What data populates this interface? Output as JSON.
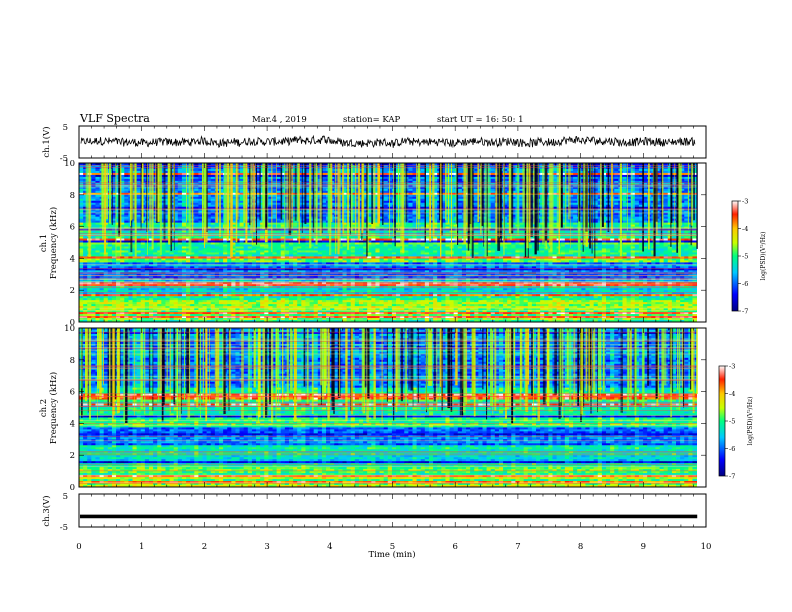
{
  "header": {
    "title": "VLF Spectra",
    "date": "Mar.4 , 2019",
    "station": "station= KAP",
    "start": "start UT = 16: 50: 1"
  },
  "chart_data": [
    {
      "name": "ch1-waveform",
      "type": "line",
      "ylabel": "ch.1(V)",
      "yticks": [
        "5",
        "-5"
      ],
      "ylim": [
        -5,
        5
      ],
      "xlim": [
        0,
        10
      ],
      "description_values": "noisy waveform around ~0 V, range roughly -2.5 to +2 V",
      "color": "#000000"
    },
    {
      "name": "ch1-spectrogram",
      "type": "heatmap",
      "ylabel": "ch.1\nFrequency (kHz)",
      "ylabel_line1": "ch.1",
      "ylabel_line2": "Frequency (kHz)",
      "yticks": [
        "0",
        "2",
        "4",
        "6",
        "8",
        "10"
      ],
      "ylim": [
        0,
        10
      ],
      "xlim": [
        0,
        10
      ],
      "colorbar": {
        "label": "log(PSD)(V²/Hz)",
        "ticks": [
          "-3",
          "-4",
          "-5",
          "-6",
          "-7"
        ],
        "range": [
          -7,
          -3
        ]
      }
    },
    {
      "name": "ch2-spectrogram",
      "type": "heatmap",
      "ylabel_line1": "ch.2",
      "ylabel_line2": "Frequency (kHz)",
      "yticks": [
        "0",
        "2",
        "4",
        "6",
        "8",
        "10"
      ],
      "ylim": [
        0,
        10
      ],
      "xlim": [
        0,
        10
      ],
      "colorbar": {
        "label": "log(PSD)(V²/Hz)",
        "ticks": [
          "-3",
          "-4",
          "-5",
          "-6",
          "-7"
        ],
        "range": [
          -7,
          -3
        ]
      }
    },
    {
      "name": "ch3-waveform",
      "type": "line",
      "ylabel": "ch.3(V)",
      "yticks": [
        "5",
        "-5"
      ],
      "ylim": [
        -5,
        5
      ],
      "xlim": [
        0,
        10
      ],
      "constant_value": -1.8,
      "color": "#000000"
    }
  ],
  "xaxis": {
    "label": "Time (min)",
    "ticks": [
      "0",
      "1",
      "2",
      "3",
      "4",
      "5",
      "6",
      "7",
      "8",
      "9",
      "10"
    ],
    "range": [
      0,
      10
    ]
  }
}
